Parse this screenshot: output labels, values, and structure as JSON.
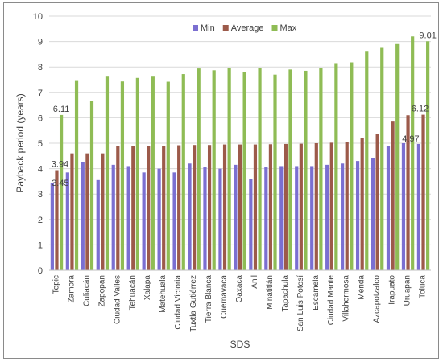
{
  "chart_data": {
    "type": "bar",
    "xlabel": "SDS",
    "ylabel": "Payback period (years)",
    "ylim": [
      0,
      10
    ],
    "yticks": [
      0,
      1,
      2,
      3,
      4,
      5,
      6,
      7,
      8,
      9,
      10
    ],
    "grid": true,
    "legend_position": "top-center",
    "categories": [
      "Tepic",
      "Zamora",
      "Culiacán",
      "Zapopan",
      "Ciudad Valles",
      "Tehuacán",
      "Xalapa",
      "Matehuala",
      "Ciudad Victoria",
      "Tuxtla Gutiérrez",
      "Tierra Blanca",
      "Cuernavaca",
      "Oaxaca",
      "Anil",
      "Minatitlán",
      "Tapachula",
      "San Luis Potosí",
      "Escamela",
      "Ciudad Mante",
      "Villahermosa",
      "Mérida",
      "Azcapotzalco",
      "Irapuato",
      "Uruapan",
      "Toluca"
    ],
    "series": [
      {
        "name": "Min",
        "color": "#7b6fd1",
        "values": [
          3.45,
          3.85,
          4.25,
          3.55,
          4.15,
          4.1,
          3.85,
          4.0,
          3.85,
          4.2,
          4.05,
          4.0,
          4.15,
          3.6,
          4.05,
          4.1,
          4.1,
          4.1,
          4.15,
          4.2,
          4.3,
          4.4,
          4.9,
          5.0,
          4.97
        ]
      },
      {
        "name": "Average",
        "color": "#9c5a4a",
        "values": [
          3.94,
          4.6,
          4.6,
          4.6,
          4.9,
          4.9,
          4.9,
          4.9,
          4.92,
          4.93,
          4.93,
          4.95,
          4.95,
          4.95,
          4.96,
          4.97,
          4.98,
          5.0,
          5.02,
          5.05,
          5.2,
          5.35,
          5.85,
          6.1,
          6.12
        ]
      },
      {
        "name": "Max",
        "color": "#8fbc55",
        "values": [
          6.11,
          7.45,
          6.67,
          7.62,
          7.43,
          7.57,
          7.62,
          7.42,
          7.72,
          7.94,
          7.87,
          7.95,
          7.8,
          7.95,
          7.7,
          7.9,
          7.85,
          7.95,
          8.15,
          8.18,
          8.6,
          8.75,
          8.9,
          9.2,
          9.01
        ]
      }
    ],
    "data_labels": [
      {
        "text": "6.11",
        "category": "Tepic",
        "series": "Max"
      },
      {
        "text": "3.94",
        "category": "Tepic",
        "series": "Average"
      },
      {
        "text": "3.45",
        "category": "Tepic",
        "series": "Min"
      },
      {
        "text": "9.01",
        "category": "Toluca",
        "series": "Max"
      },
      {
        "text": "6.12",
        "category": "Toluca",
        "series": "Average"
      },
      {
        "text": "4.97",
        "category": "Toluca",
        "series": "Min"
      }
    ]
  }
}
